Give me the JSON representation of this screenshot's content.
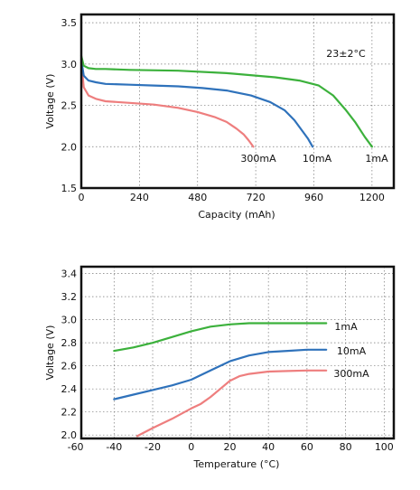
{
  "chart_data": [
    {
      "type": "line",
      "title": "",
      "xlabel": "Capacity (mAh)",
      "ylabel": "Voltage (V)",
      "xlim": [
        0,
        1290
      ],
      "ylim": [
        1.5,
        3.6
      ],
      "xticks": [
        0,
        240,
        480,
        720,
        960,
        1200
      ],
      "yticks": [
        1.5,
        2.0,
        2.5,
        3.0,
        3.5
      ],
      "x_tick_labels": [
        "0",
        "240",
        "480",
        "720",
        "960",
        "1200"
      ],
      "y_tick_labels": [
        "1.5",
        "2.0",
        "2.5",
        "3.0",
        "3.5"
      ],
      "grid": true,
      "annotation": "23±2°C",
      "series": [
        {
          "name": "300mA",
          "color": "#ee7e7e",
          "x": [
            0,
            10,
            30,
            60,
            100,
            200,
            300,
            400,
            480,
            550,
            600,
            640,
            670,
            690,
            700,
            710
          ],
          "y": [
            3.02,
            2.72,
            2.62,
            2.58,
            2.55,
            2.53,
            2.51,
            2.47,
            2.42,
            2.36,
            2.3,
            2.22,
            2.15,
            2.08,
            2.04,
            2.0
          ]
        },
        {
          "name": "10mA",
          "color": "#2f72bb",
          "x": [
            0,
            10,
            30,
            60,
            100,
            200,
            300,
            400,
            500,
            600,
            700,
            780,
            840,
            880,
            910,
            935,
            955
          ],
          "y": [
            3.05,
            2.86,
            2.8,
            2.78,
            2.76,
            2.75,
            2.74,
            2.73,
            2.71,
            2.68,
            2.62,
            2.54,
            2.44,
            2.32,
            2.2,
            2.1,
            2.0
          ]
        },
        {
          "name": "1mA",
          "color": "#3cb13c",
          "x": [
            0,
            10,
            30,
            60,
            100,
            200,
            400,
            600,
            800,
            900,
            980,
            1040,
            1090,
            1130,
            1170,
            1200
          ],
          "y": [
            3.1,
            2.98,
            2.95,
            2.94,
            2.94,
            2.93,
            2.92,
            2.89,
            2.84,
            2.8,
            2.74,
            2.62,
            2.45,
            2.3,
            2.12,
            2.0
          ]
        }
      ]
    },
    {
      "type": "line",
      "title": "",
      "xlabel": "Temperature (°C)",
      "ylabel": "Voltage (V)",
      "xlim": [
        -57,
        105
      ],
      "ylim": [
        1.97,
        3.46
      ],
      "xticks": [
        -60,
        -40,
        -20,
        0,
        20,
        40,
        60,
        80,
        100
      ],
      "yticks": [
        2.0,
        2.2,
        2.4,
        2.6,
        2.8,
        3.0,
        3.2,
        3.4
      ],
      "x_tick_labels": [
        "-60",
        "-40",
        "-20",
        "0",
        "20",
        "40",
        "60",
        "80",
        "100"
      ],
      "y_tick_labels": [
        "2.0",
        "2.2",
        "2.4",
        "2.6",
        "2.8",
        "3.0",
        "3.2",
        "3.4"
      ],
      "grid": true,
      "series": [
        {
          "name": "1mA",
          "color": "#3cb13c",
          "x": [
            -40,
            -30,
            -20,
            -10,
            0,
            10,
            20,
            30,
            40,
            50,
            60,
            70
          ],
          "y": [
            2.73,
            2.76,
            2.8,
            2.85,
            2.9,
            2.94,
            2.96,
            2.97,
            2.97,
            2.97,
            2.97,
            2.97
          ]
        },
        {
          "name": "10mA",
          "color": "#2f72bb",
          "x": [
            -40,
            -30,
            -20,
            -10,
            0,
            10,
            20,
            30,
            40,
            50,
            60,
            70
          ],
          "y": [
            2.31,
            2.35,
            2.39,
            2.43,
            2.48,
            2.56,
            2.64,
            2.69,
            2.72,
            2.73,
            2.74,
            2.74
          ]
        },
        {
          "name": "300mA",
          "color": "#ee7e7e",
          "x": [
            -28,
            -20,
            -10,
            0,
            5,
            10,
            15,
            20,
            25,
            30,
            40,
            50,
            60,
            70
          ],
          "y": [
            1.99,
            2.06,
            2.14,
            2.23,
            2.27,
            2.33,
            2.4,
            2.47,
            2.51,
            2.53,
            2.55,
            2.555,
            2.56,
            2.56
          ]
        }
      ]
    }
  ]
}
